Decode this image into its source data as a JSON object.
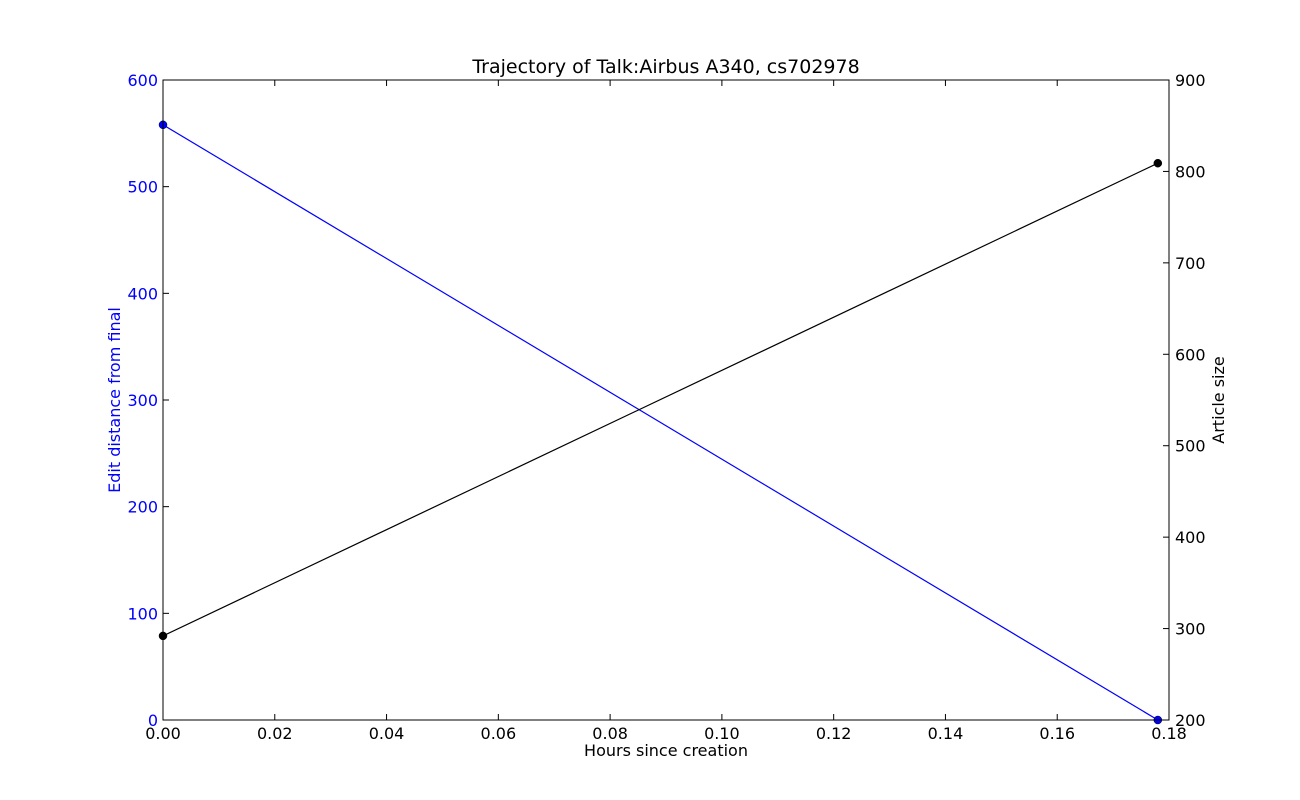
{
  "chart_data": {
    "type": "line",
    "title": "Trajectory of Talk:Airbus A340, cs702978",
    "xlabel": "Hours since creation",
    "xlim": [
      0,
      0.18
    ],
    "x_ticks": [
      "0.00",
      "0.02",
      "0.04",
      "0.06",
      "0.08",
      "0.10",
      "0.12",
      "0.14",
      "0.16",
      "0.18"
    ],
    "grid": false,
    "y_left": {
      "label": "Edit distance from final",
      "lim": [
        0,
        600
      ],
      "ticks": [
        "0",
        "100",
        "200",
        "300",
        "400",
        "500",
        "600"
      ],
      "color": "#0000ff"
    },
    "y_right": {
      "label": "Article size",
      "lim": [
        200,
        900
      ],
      "ticks": [
        "200",
        "300",
        "400",
        "500",
        "600",
        "700",
        "800",
        "900"
      ],
      "color": "#000000"
    },
    "series": [
      {
        "axis": "left",
        "color": "#0000ff",
        "x": [
          0.0,
          0.178
        ],
        "y": [
          558,
          0
        ]
      },
      {
        "axis": "right",
        "color": "#000000",
        "x": [
          0.0,
          0.178
        ],
        "y": [
          292,
          809
        ]
      }
    ]
  }
}
